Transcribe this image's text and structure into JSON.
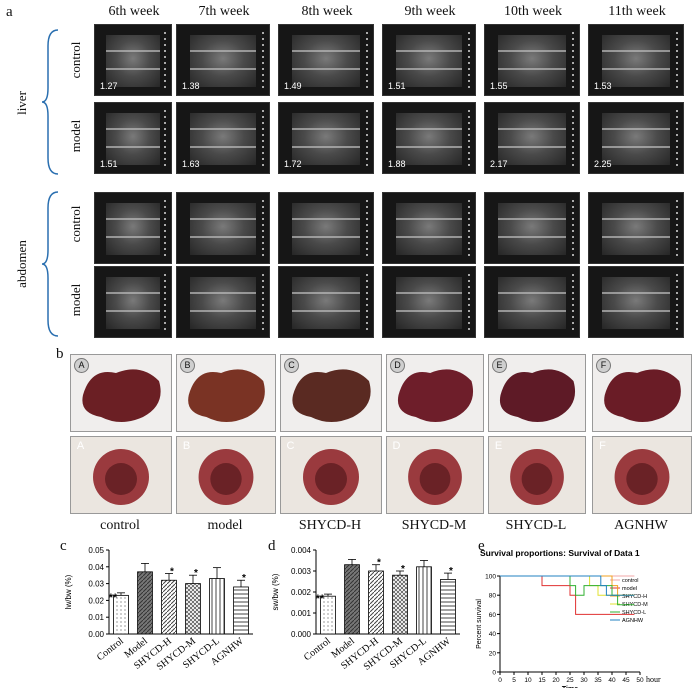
{
  "panels": {
    "a": "a",
    "b": "b",
    "c": "c",
    "d": "d",
    "e": "e"
  },
  "weeks": [
    "6th week",
    "7th week",
    "8th week",
    "9th week",
    "10th week",
    "11th week"
  ],
  "liver": {
    "label": "liver",
    "control_label": "control",
    "model_label": "model",
    "control_values": [
      "1.27",
      "1.38",
      "1.49",
      "1.51",
      "1.55",
      "1.53"
    ],
    "model_values": [
      "1.51",
      "1.63",
      "1.72",
      "1.88",
      "2.17",
      "2.25"
    ]
  },
  "abdomen": {
    "label": "abdomen",
    "control_label": "control",
    "model_label": "model"
  },
  "photo_letters": [
    "A",
    "B",
    "C",
    "D",
    "E",
    "F"
  ],
  "groups": [
    "control",
    "model",
    "SHYCD-H",
    "SHYCD-M",
    "SHYCD-L",
    "AGNHW"
  ],
  "chart_data": [
    {
      "type": "bar",
      "ylabel": "lw/bw (%)",
      "categories": [
        "Control",
        "Model",
        "SHYCD-H",
        "SHYCD-M",
        "SHYCD-L",
        "AGNHW"
      ],
      "values": [
        0.023,
        0.037,
        0.032,
        0.03,
        0.033,
        0.028
      ],
      "errors": [
        0.0015,
        0.005,
        0.004,
        0.005,
        0.0065,
        0.004
      ],
      "annotations": [
        "**",
        "",
        "*",
        "*",
        "",
        "*"
      ],
      "yticks": [
        "0.00",
        "0.01",
        "0.02",
        "0.03",
        "0.04",
        "0.05"
      ],
      "ylim": [
        0,
        0.05
      ]
    },
    {
      "type": "bar",
      "ylabel": "sw/bw (%)",
      "categories": [
        "Control",
        "Model",
        "SHYCD-H",
        "SHYCD-M",
        "SHYCD-L",
        "AGNHW"
      ],
      "values": [
        0.0018,
        0.0033,
        0.003,
        0.0028,
        0.0032,
        0.0026
      ],
      "errors": [
        0.0001,
        0.00025,
        0.0003,
        0.0002,
        0.0003,
        0.0003
      ],
      "annotations": [
        "**",
        "",
        "*",
        "*",
        "",
        "*"
      ],
      "yticks": [
        "0.000",
        "0.001",
        "0.002",
        "0.003",
        "0.004"
      ],
      "ylim": [
        0,
        0.004
      ]
    },
    {
      "type": "line",
      "title": "Survival proportions: Survival of Data 1",
      "xlabel": "Time",
      "ylabel": "Percent survival",
      "xunit": "hour",
      "xticks": [
        "0",
        "5",
        "10",
        "15",
        "20",
        "25",
        "30",
        "35",
        "40",
        "45",
        "50"
      ],
      "yticks": [
        "0",
        "20",
        "40",
        "60",
        "80",
        "100"
      ],
      "xlim": [
        0,
        50
      ],
      "ylim": [
        0,
        100
      ],
      "series": [
        {
          "name": "control",
          "color": "#f2a7a7",
          "x": [
            0,
            48
          ],
          "y": [
            100,
            100
          ]
        },
        {
          "name": "model",
          "color": "#e03030",
          "x": [
            0,
            15,
            15,
            25,
            25,
            27,
            27,
            48
          ],
          "y": [
            100,
            100,
            90,
            90,
            80,
            80,
            60,
            60
          ]
        },
        {
          "name": "SHYCD-H",
          "color": "#f0a020",
          "x": [
            0,
            40,
            40,
            42,
            42,
            48
          ],
          "y": [
            100,
            100,
            90,
            90,
            80,
            80
          ]
        },
        {
          "name": "SHYCD-M",
          "color": "#e0e030",
          "x": [
            0,
            32,
            32,
            35,
            35,
            48
          ],
          "y": [
            100,
            100,
            90,
            90,
            80,
            80
          ]
        },
        {
          "name": "SHYCD-L",
          "color": "#30b030",
          "x": [
            0,
            25,
            25,
            27,
            27,
            30,
            30,
            40,
            40,
            42,
            42,
            48
          ],
          "y": [
            100,
            100,
            90,
            90,
            80,
            80,
            90,
            90,
            80,
            80,
            70,
            70
          ]
        },
        {
          "name": "AGNHW",
          "color": "#2080c0",
          "x": [
            0,
            36,
            36,
            38,
            38,
            48
          ],
          "y": [
            100,
            100,
            90,
            90,
            80,
            80
          ]
        }
      ]
    }
  ]
}
